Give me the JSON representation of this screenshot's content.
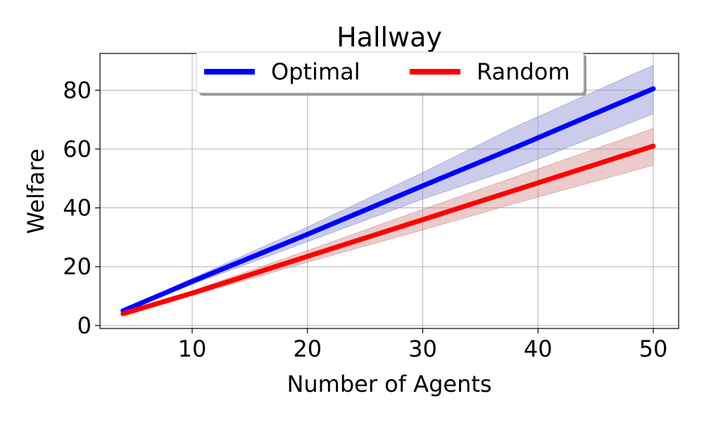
{
  "chart_data": {
    "type": "line",
    "title": "Hallway",
    "xlabel": "Number of Agents",
    "ylabel": "Welfare",
    "xlim": [
      2,
      52.2
    ],
    "ylim": [
      -1,
      92.5
    ],
    "xticks": [
      10,
      20,
      30,
      40,
      50
    ],
    "yticks": [
      0,
      20,
      40,
      60,
      80
    ],
    "grid": true,
    "legend": {
      "placement": "top-center",
      "columns": 2
    },
    "x": [
      4,
      10,
      20,
      30,
      38,
      50
    ],
    "series": [
      {
        "name": "Optimal",
        "color": "#0000ff",
        "band_color": "#8c8cd2",
        "values": [
          5,
          15,
          31,
          47.5,
          60.5,
          80.5
        ],
        "lower": [
          4.6,
          14,
          28.5,
          43,
          53.5,
          72
        ],
        "upper": [
          5.4,
          16,
          33.5,
          52,
          67.5,
          88.5
        ]
      },
      {
        "name": "Random",
        "color": "#ff0000",
        "band_color": "#d28c8c",
        "values": [
          4,
          11,
          23.5,
          36,
          46,
          61
        ],
        "lower": [
          3.6,
          10.2,
          21.5,
          32.5,
          41.5,
          54.5
        ],
        "upper": [
          4.4,
          11.8,
          25.5,
          39.5,
          50.5,
          67
        ]
      }
    ]
  }
}
